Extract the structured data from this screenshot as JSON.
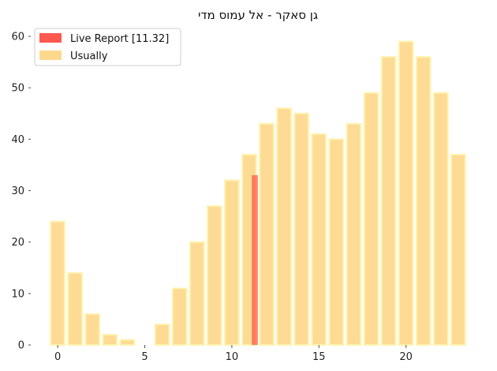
{
  "chart_data": {
    "type": "bar",
    "title": "גן סאקר -  אל עמוס מדי",
    "xlabel": "",
    "ylabel": "",
    "xlim": [
      -1.5,
      24
    ],
    "ylim": [
      0,
      62
    ],
    "x_ticks": [
      0,
      5,
      10,
      15,
      20
    ],
    "y_ticks": [
      0,
      10,
      20,
      30,
      40,
      50,
      60
    ],
    "grid": false,
    "legend_position": "top-left",
    "series": [
      {
        "name": "Usually",
        "color": "#fdd27a",
        "edge_color": "#fff3b0",
        "x": [
          0,
          1,
          2,
          3,
          4,
          5,
          6,
          7,
          8,
          9,
          10,
          11,
          12,
          13,
          14,
          15,
          16,
          17,
          18,
          19,
          20,
          21,
          22,
          23
        ],
        "values": [
          24,
          14,
          6,
          2,
          1,
          0,
          4,
          11,
          20,
          27,
          32,
          37,
          43,
          46,
          45,
          41,
          40,
          43,
          49,
          56,
          59,
          56,
          49,
          37
        ]
      },
      {
        "name": "Live Report [11.32]",
        "color": "#ff3b30",
        "x": [
          11.32
        ],
        "values": [
          33
        ]
      }
    ]
  }
}
